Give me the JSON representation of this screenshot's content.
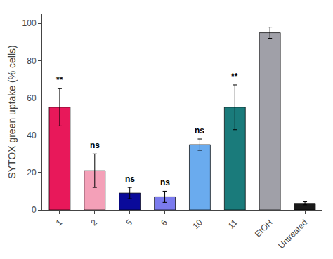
{
  "chart_data": {
    "type": "bar",
    "categories": [
      "1",
      "2",
      "5",
      "6",
      "10",
      "11",
      "EtOH",
      "Untreated"
    ],
    "values": [
      55,
      21,
      9,
      7,
      35,
      55,
      95,
      3.5
    ],
    "errors": [
      10,
      9,
      3,
      3,
      3,
      12,
      3,
      0.8
    ],
    "colors": [
      "#E8185A",
      "#F4A0B8",
      "#0A0A9A",
      "#7B7BEE",
      "#6AABEE",
      "#1A7B7B",
      "#A0A0A8",
      "#1A1A1A"
    ],
    "annotations": [
      "**",
      "ns",
      "ns",
      "ns",
      "ns",
      "**",
      null,
      null
    ],
    "ylabel": "SYTOX green uptake (% cells)",
    "ylim": [
      0,
      105
    ],
    "yticks": [
      0,
      20,
      40,
      60,
      80,
      100
    ],
    "grid": false
  }
}
